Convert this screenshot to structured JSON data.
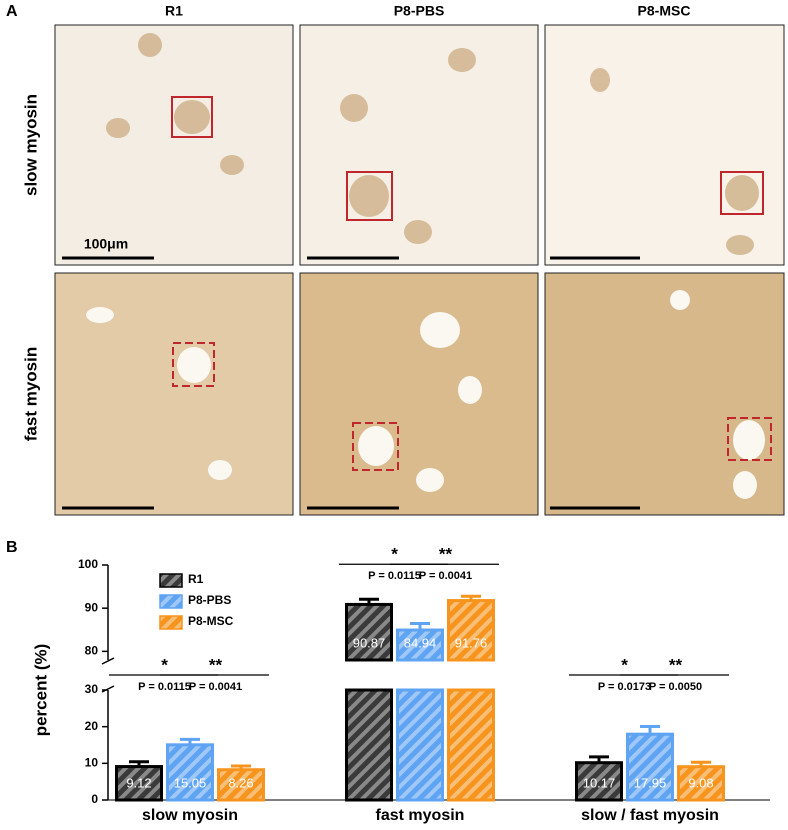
{
  "panel_a": {
    "label": "A",
    "columns": [
      "R1",
      "P8-PBS",
      "P8-MSC"
    ],
    "rows": [
      "slow myosin",
      "fast myosin"
    ],
    "scale_bar": "100μm"
  },
  "chart_data": {
    "type": "bar",
    "label": "B",
    "ylabel": "percent (%)",
    "categories": [
      "slow myosin",
      "fast myosin",
      "slow / fast myosin"
    ],
    "series": [
      {
        "name": "R1",
        "color": "#3a3a3a",
        "values": [
          9.12,
          90.87,
          10.17
        ],
        "errors": [
          1.3,
          1.2,
          1.6
        ]
      },
      {
        "name": "P8-PBS",
        "color": "#5fa3f3",
        "values": [
          15.05,
          84.94,
          17.95
        ],
        "errors": [
          1.5,
          1.5,
          2.1
        ]
      },
      {
        "name": "P8-MSC",
        "color": "#f7941d",
        "values": [
          8.26,
          91.76,
          9.08
        ],
        "errors": [
          1.0,
          1.0,
          1.2
        ]
      }
    ],
    "ylim": [
      0,
      100
    ],
    "y_break": [
      30,
      78
    ],
    "yticks": [
      0,
      10,
      20,
      30,
      80,
      90,
      100
    ],
    "legend": "upper-left",
    "annotations": [
      [
        {
          "stars": "*",
          "p": "P = 0.0115"
        },
        {
          "stars": "**",
          "p": "P = 0.0041"
        }
      ],
      [
        {
          "stars": "*",
          "p": "P = 0.0115"
        },
        {
          "stars": "**",
          "p": "P = 0.0041"
        }
      ],
      [
        {
          "stars": "*",
          "p": "P = 0.0173"
        },
        {
          "stars": "**",
          "p": "P = 0.0050"
        }
      ]
    ]
  }
}
